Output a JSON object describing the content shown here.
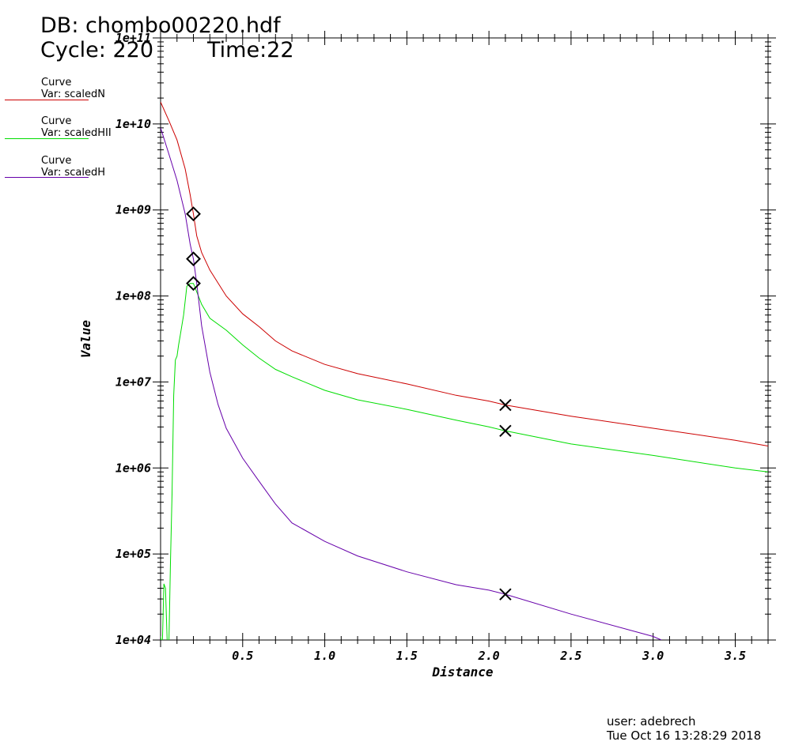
{
  "header": {
    "db": "DB: chombo00220.hdf",
    "cycle": "Cycle: 220",
    "time": "Time:22"
  },
  "legend": [
    {
      "kind": "Curve",
      "var": "Var: scaledN",
      "color": "#cc0000"
    },
    {
      "kind": "Curve",
      "var": "Var: scaledHII",
      "color": "#00dd00"
    },
    {
      "kind": "Curve",
      "var": "Var: scaledH",
      "color": "#6600aa"
    }
  ],
  "footer": {
    "user": "user: adebrech",
    "date": "Tue Oct 16 13:28:29 2018"
  },
  "chart_data": {
    "type": "line",
    "xlabel": "Distance",
    "ylabel": "Value",
    "xlim": [
      0.0,
      3.7
    ],
    "ylim": [
      10000,
      100000000000
    ],
    "yscale": "log",
    "x_ticks": [
      "0.5",
      "1.0",
      "1.5",
      "2.0",
      "2.5",
      "3.0",
      "3.5"
    ],
    "y_ticks": [
      "1e+04",
      "1e+05",
      "1e+06",
      "1e+07",
      "1e+08",
      "1e+09",
      "1e+10",
      "1e+11"
    ],
    "grid": false,
    "series": [
      {
        "name": "scaledN",
        "color": "#cc0000",
        "x": [
          0.0,
          0.05,
          0.1,
          0.15,
          0.18,
          0.2,
          0.22,
          0.25,
          0.3,
          0.4,
          0.5,
          0.6,
          0.7,
          0.8,
          1.0,
          1.2,
          1.5,
          1.8,
          2.0,
          2.1,
          2.5,
          3.0,
          3.5,
          3.7
        ],
        "y": [
          18000000000,
          11000000000,
          6500000000,
          3000000000,
          1500000000,
          900000000,
          500000000,
          320000000,
          200000000,
          100000000,
          62000000,
          44000000,
          30000000,
          23000000,
          16000000,
          12500000,
          9500000,
          7000000,
          6000000,
          5400000,
          4000000,
          2900000,
          2100000,
          1800000
        ],
        "marker_start": {
          "x": 0.2,
          "y": 900000000,
          "shape": "diamond"
        },
        "marker_end": {
          "x": 2.1,
          "y": 5400000,
          "shape": "x"
        }
      },
      {
        "name": "scaledHII",
        "color": "#00dd00",
        "x": [
          0.0,
          0.01,
          0.02,
          0.03,
          0.04,
          0.05,
          0.06,
          0.07,
          0.08,
          0.09,
          0.1,
          0.11,
          0.12,
          0.14,
          0.16,
          0.18,
          0.2,
          0.25,
          0.3,
          0.4,
          0.5,
          0.6,
          0.7,
          0.8,
          1.0,
          1.2,
          1.5,
          1.8,
          2.0,
          2.1,
          2.5,
          3.0,
          3.5,
          3.7
        ],
        "y": [
          11000,
          8000,
          45000,
          40000,
          10000,
          8000,
          80000,
          500000,
          7000000,
          18000000,
          20000000,
          27000000,
          35000000,
          60000000,
          130000000,
          140000000,
          140000000,
          80000000,
          55000000,
          40000000,
          27000000,
          19000000,
          14000000,
          11500000,
          8000000,
          6200000,
          4800000,
          3600000,
          3000000,
          2700000,
          1900000,
          1400000,
          1000000,
          900000
        ],
        "marker_start": {
          "x": 0.2,
          "y": 140000000,
          "shape": "diamond"
        },
        "marker_end": {
          "x": 2.1,
          "y": 2700000,
          "shape": "x"
        }
      },
      {
        "name": "scaledH",
        "color": "#6600aa",
        "x": [
          0.0,
          0.05,
          0.1,
          0.15,
          0.18,
          0.2,
          0.22,
          0.25,
          0.3,
          0.35,
          0.4,
          0.5,
          0.6,
          0.7,
          0.8,
          1.0,
          1.2,
          1.5,
          1.8,
          2.0,
          2.1,
          2.5,
          3.0,
          3.05
        ],
        "y": [
          9000000000,
          4500000000,
          2200000000,
          900000000,
          400000000,
          270000000,
          140000000,
          45000000,
          13000000,
          5500000,
          2900000,
          1300000,
          700000,
          380000,
          230000,
          140000,
          95000,
          62000,
          44000,
          38000,
          34000,
          20000,
          11000,
          10000
        ],
        "marker_start": {
          "x": 0.2,
          "y": 270000000,
          "shape": "diamond"
        },
        "marker_end": {
          "x": 2.1,
          "y": 34000,
          "shape": "x"
        }
      }
    ]
  }
}
